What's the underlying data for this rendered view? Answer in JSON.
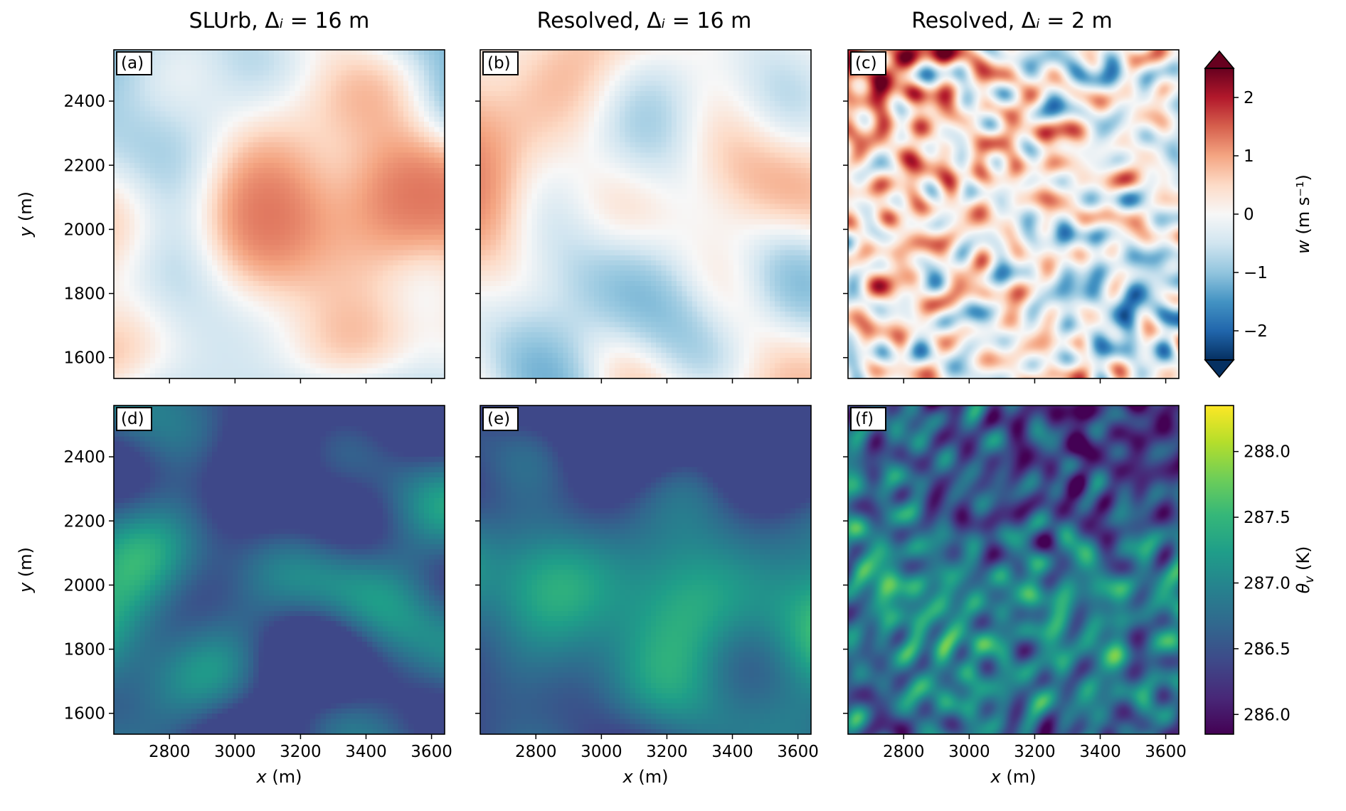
{
  "column_titles": [
    {
      "name": "SLUrb",
      "grid": "16 m"
    },
    {
      "name": "Resolved",
      "grid": "16 m"
    },
    {
      "name": "Resolved",
      "grid": "2 m"
    }
  ],
  "panel_labels": [
    "(a)",
    "(b)",
    "(c)",
    "(d)",
    "(e)",
    "(f)"
  ],
  "axes": {
    "xlabel": "x (m)",
    "ylabel": "y (m)",
    "xlim": [
      2630,
      3640
    ],
    "ylim": [
      1535,
      2560
    ],
    "x_ticks": [
      2800,
      3000,
      3200,
      3400,
      3600
    ],
    "y_ticks": [
      1600,
      1800,
      2000,
      2200,
      2400
    ]
  },
  "colorbars": {
    "w": {
      "label": "w (m s⁻¹)",
      "range": [
        -2.5,
        2.5
      ],
      "ticks": [
        -2,
        -1,
        0,
        1,
        2
      ],
      "tick_labels": [
        "−2",
        "−1",
        "0",
        "1",
        "2"
      ],
      "extend": "both",
      "colormap": "RdBu_r",
      "colors": [
        "#053061",
        "#2166ac",
        "#4393c3",
        "#92c5de",
        "#d1e5f0",
        "#f7f7f7",
        "#fddbc7",
        "#f4a582",
        "#d6604d",
        "#b2182b",
        "#67001f"
      ]
    },
    "theta": {
      "label": "θv (K)",
      "range": [
        285.85,
        288.35
      ],
      "ticks": [
        286.0,
        286.5,
        287.0,
        287.5,
        288.0
      ],
      "tick_labels": [
        "286.0",
        "286.5",
        "287.0",
        "287.5",
        "288.0"
      ],
      "colormap": "viridis",
      "colors": [
        "#440154",
        "#482878",
        "#3e4989",
        "#31688e",
        "#26828e",
        "#1f9e89",
        "#35b779",
        "#6ece58",
        "#b5de2b",
        "#fde725"
      ]
    }
  },
  "chart_data": [
    {
      "type": "heatmap",
      "panel": "(a)",
      "field": "w",
      "grid_spacing_m": 16,
      "model": "SLUrb",
      "xlim": [
        2630,
        3640
      ],
      "ylim": [
        1535,
        2560
      ],
      "value_range": [
        -2.5,
        2.5
      ]
    },
    {
      "type": "heatmap",
      "panel": "(b)",
      "field": "w",
      "grid_spacing_m": 16,
      "model": "Resolved",
      "xlim": [
        2630,
        3640
      ],
      "ylim": [
        1535,
        2560
      ],
      "value_range": [
        -2.5,
        2.5
      ]
    },
    {
      "type": "heatmap",
      "panel": "(c)",
      "field": "w",
      "grid_spacing_m": 2,
      "model": "Resolved",
      "xlim": [
        2630,
        3640
      ],
      "ylim": [
        1535,
        2560
      ],
      "value_range": [
        -2.5,
        2.5
      ]
    },
    {
      "type": "heatmap",
      "panel": "(d)",
      "field": "theta_v",
      "grid_spacing_m": 16,
      "model": "SLUrb",
      "xlim": [
        2630,
        3640
      ],
      "ylim": [
        1535,
        2560
      ],
      "value_range": [
        285.85,
        288.35
      ]
    },
    {
      "type": "heatmap",
      "panel": "(e)",
      "field": "theta_v",
      "grid_spacing_m": 16,
      "model": "Resolved",
      "xlim": [
        2630,
        3640
      ],
      "ylim": [
        1535,
        2560
      ],
      "value_range": [
        285.85,
        288.35
      ]
    },
    {
      "type": "heatmap",
      "panel": "(f)",
      "field": "theta_v",
      "grid_spacing_m": 2,
      "model": "Resolved",
      "xlim": [
        2630,
        3640
      ],
      "ylim": [
        1535,
        2560
      ],
      "value_range": [
        285.85,
        288.35
      ]
    }
  ]
}
